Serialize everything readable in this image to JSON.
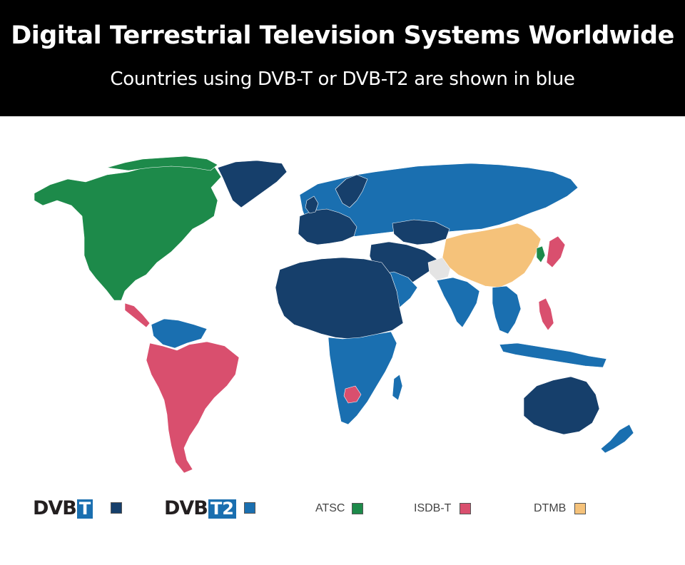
{
  "header": {
    "title": "Digital Terrestrial Television Systems Worldwide",
    "subtitle": "Countries using DVB-T or DVB-T2 are shown in blue"
  },
  "legend": {
    "dvbt": {
      "logo_left": "DVB",
      "logo_right": "T",
      "color": "#163f6b"
    },
    "dvbt2": {
      "logo_left": "DVB",
      "logo_right": "T2",
      "color": "#1a6fb0"
    },
    "atsc": {
      "label": "ATSC",
      "color": "#1d8a4a"
    },
    "isdbt": {
      "label": "ISDB-T",
      "color": "#d94f6e"
    },
    "dtmb": {
      "label": "DTMB",
      "color": "#f5c27a"
    }
  },
  "colors": {
    "dvbt": "#163f6b",
    "dvbt2": "#1a6fb0",
    "atsc": "#1d8a4a",
    "isdbt": "#d94f6e",
    "dtmb": "#f5c27a",
    "none": "#e4e4e4"
  }
}
